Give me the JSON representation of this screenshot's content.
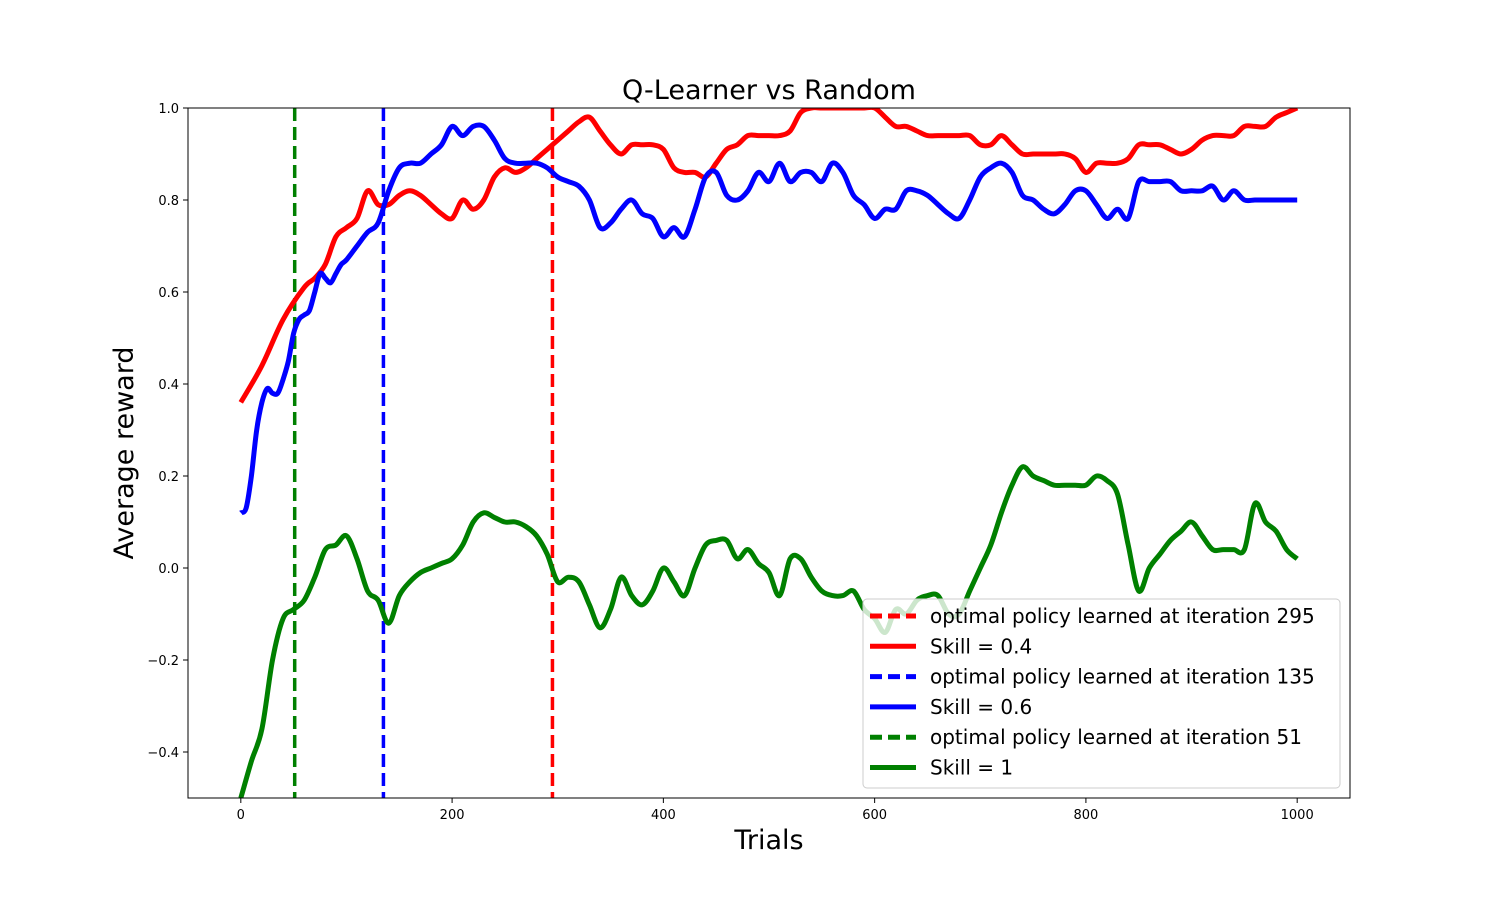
{
  "chart_data": {
    "type": "line",
    "title": "Q-Learner vs Random",
    "xlabel": "Trials",
    "ylabel": "Average reward",
    "xlim": [
      -50,
      1050
    ],
    "ylim": [
      -0.5,
      1.0
    ],
    "xticks": [
      0,
      200,
      400,
      600,
      800,
      1000
    ],
    "yticks": [
      -0.4,
      -0.2,
      0.0,
      0.2,
      0.4,
      0.6,
      0.8,
      1.0
    ],
    "ytick_labels": [
      "−0.4",
      "−0.2",
      "0.0",
      "0.2",
      "0.4",
      "0.6",
      "0.8",
      "1.0"
    ],
    "grid": false,
    "legend_position": "lower-right",
    "legend": [
      {
        "label": "optimal policy learned at iteration 295",
        "color": "#ff0000",
        "style": "dashed"
      },
      {
        "label": "Skill = 0.4",
        "color": "#ff0000",
        "style": "solid"
      },
      {
        "label": "optimal policy learned at iteration 135",
        "color": "#0000ff",
        "style": "dashed"
      },
      {
        "label": "Skill = 0.6",
        "color": "#0000ff",
        "style": "solid"
      },
      {
        "label": "optimal policy learned at iteration 51",
        "color": "#008000",
        "style": "dashed"
      },
      {
        "label": "Skill = 1",
        "color": "#008000",
        "style": "solid"
      }
    ],
    "vlines": [
      {
        "x": 295,
        "color": "#ff0000",
        "label": "optimal policy learned at iteration 295"
      },
      {
        "x": 135,
        "color": "#0000ff",
        "label": "optimal policy learned at iteration 135"
      },
      {
        "x": 51,
        "color": "#008000",
        "label": "optimal policy learned at iteration 51"
      }
    ],
    "series": [
      {
        "name": "Skill = 0.4",
        "color": "#ff0000",
        "x": [
          0,
          20,
          40,
          60,
          70,
          80,
          90,
          100,
          110,
          120,
          130,
          140,
          150,
          160,
          170,
          180,
          190,
          200,
          210,
          220,
          230,
          240,
          250,
          260,
          270,
          280,
          290,
          300,
          310,
          320,
          330,
          340,
          350,
          360,
          370,
          380,
          390,
          400,
          410,
          420,
          430,
          440,
          450,
          460,
          470,
          480,
          490,
          500,
          510,
          520,
          530,
          540,
          550,
          560,
          570,
          580,
          590,
          600,
          610,
          620,
          630,
          640,
          650,
          660,
          670,
          680,
          690,
          700,
          710,
          720,
          730,
          740,
          750,
          760,
          770,
          780,
          790,
          800,
          810,
          820,
          830,
          840,
          850,
          860,
          870,
          880,
          890,
          900,
          910,
          920,
          930,
          940,
          950,
          960,
          970,
          980,
          990,
          1000
        ],
        "y": [
          0.36,
          0.44,
          0.54,
          0.61,
          0.63,
          0.66,
          0.72,
          0.74,
          0.76,
          0.82,
          0.79,
          0.79,
          0.81,
          0.82,
          0.81,
          0.79,
          0.77,
          0.76,
          0.8,
          0.78,
          0.8,
          0.85,
          0.87,
          0.86,
          0.87,
          0.89,
          0.91,
          0.93,
          0.95,
          0.97,
          0.98,
          0.95,
          0.92,
          0.9,
          0.92,
          0.92,
          0.92,
          0.91,
          0.87,
          0.86,
          0.86,
          0.85,
          0.88,
          0.91,
          0.92,
          0.94,
          0.94,
          0.94,
          0.94,
          0.95,
          0.99,
          1.0,
          1.0,
          1.0,
          1.0,
          1.0,
          1.0,
          1.0,
          0.98,
          0.96,
          0.96,
          0.95,
          0.94,
          0.94,
          0.94,
          0.94,
          0.94,
          0.92,
          0.92,
          0.94,
          0.92,
          0.9,
          0.9,
          0.9,
          0.9,
          0.9,
          0.89,
          0.86,
          0.88,
          0.88,
          0.88,
          0.89,
          0.92,
          0.92,
          0.92,
          0.91,
          0.9,
          0.91,
          0.93,
          0.94,
          0.94,
          0.94,
          0.96,
          0.96,
          0.96,
          0.98,
          0.99,
          1.0
        ]
      },
      {
        "name": "Skill = 0.6",
        "color": "#0000ff",
        "x": [
          0,
          5,
          10,
          15,
          20,
          25,
          30,
          35,
          40,
          45,
          50,
          55,
          60,
          65,
          70,
          75,
          80,
          85,
          90,
          95,
          100,
          110,
          120,
          130,
          140,
          150,
          160,
          170,
          180,
          190,
          200,
          210,
          220,
          230,
          240,
          250,
          260,
          270,
          280,
          290,
          300,
          310,
          320,
          330,
          340,
          350,
          360,
          370,
          380,
          390,
          400,
          410,
          420,
          430,
          440,
          450,
          460,
          470,
          480,
          490,
          500,
          510,
          520,
          530,
          540,
          550,
          560,
          570,
          580,
          590,
          600,
          610,
          620,
          630,
          640,
          650,
          660,
          670,
          680,
          690,
          700,
          710,
          720,
          730,
          740,
          750,
          760,
          770,
          780,
          790,
          800,
          810,
          820,
          830,
          840,
          850,
          860,
          870,
          880,
          890,
          900,
          910,
          920,
          930,
          940,
          950,
          960,
          970,
          980,
          990,
          1000
        ],
        "y": [
          0.12,
          0.13,
          0.2,
          0.3,
          0.36,
          0.39,
          0.38,
          0.38,
          0.41,
          0.45,
          0.51,
          0.54,
          0.55,
          0.56,
          0.6,
          0.64,
          0.63,
          0.62,
          0.64,
          0.66,
          0.67,
          0.7,
          0.73,
          0.75,
          0.82,
          0.87,
          0.88,
          0.88,
          0.9,
          0.92,
          0.96,
          0.94,
          0.96,
          0.96,
          0.93,
          0.89,
          0.88,
          0.88,
          0.88,
          0.87,
          0.85,
          0.84,
          0.83,
          0.8,
          0.74,
          0.75,
          0.78,
          0.8,
          0.77,
          0.76,
          0.72,
          0.74,
          0.72,
          0.78,
          0.85,
          0.86,
          0.81,
          0.8,
          0.82,
          0.86,
          0.84,
          0.88,
          0.84,
          0.86,
          0.86,
          0.84,
          0.88,
          0.86,
          0.81,
          0.79,
          0.76,
          0.78,
          0.78,
          0.82,
          0.82,
          0.81,
          0.79,
          0.77,
          0.76,
          0.8,
          0.85,
          0.87,
          0.88,
          0.86,
          0.81,
          0.8,
          0.78,
          0.77,
          0.79,
          0.82,
          0.82,
          0.79,
          0.76,
          0.78,
          0.76,
          0.84,
          0.84,
          0.84,
          0.84,
          0.82,
          0.82,
          0.82,
          0.83,
          0.8,
          0.82,
          0.8,
          0.8,
          0.8,
          0.8,
          0.8,
          0.8
        ]
      },
      {
        "name": "Skill = 1",
        "color": "#008000",
        "x": [
          0,
          10,
          20,
          30,
          40,
          50,
          60,
          70,
          80,
          90,
          100,
          110,
          120,
          130,
          140,
          150,
          160,
          170,
          180,
          190,
          200,
          210,
          220,
          230,
          240,
          250,
          260,
          270,
          280,
          290,
          300,
          310,
          320,
          330,
          340,
          350,
          360,
          370,
          380,
          390,
          400,
          410,
          420,
          430,
          440,
          450,
          460,
          470,
          480,
          490,
          500,
          510,
          520,
          530,
          540,
          550,
          560,
          570,
          580,
          590,
          600,
          610,
          620,
          630,
          640,
          650,
          660,
          670,
          680,
          690,
          700,
          710,
          720,
          730,
          740,
          750,
          760,
          770,
          780,
          790,
          800,
          810,
          820,
          830,
          840,
          850,
          860,
          870,
          880,
          890,
          900,
          910,
          920,
          930,
          940,
          950,
          960,
          970,
          980,
          990,
          1000
        ],
        "y": [
          -0.5,
          -0.42,
          -0.35,
          -0.2,
          -0.11,
          -0.09,
          -0.07,
          -0.02,
          0.04,
          0.05,
          0.07,
          0.02,
          -0.05,
          -0.07,
          -0.12,
          -0.06,
          -0.03,
          -0.01,
          0.0,
          0.01,
          0.02,
          0.05,
          0.1,
          0.12,
          0.11,
          0.1,
          0.1,
          0.09,
          0.07,
          0.03,
          -0.03,
          -0.02,
          -0.03,
          -0.08,
          -0.13,
          -0.09,
          -0.02,
          -0.06,
          -0.08,
          -0.05,
          0.0,
          -0.03,
          -0.06,
          0.0,
          0.05,
          0.06,
          0.06,
          0.02,
          0.04,
          0.01,
          -0.01,
          -0.06,
          0.02,
          0.02,
          -0.02,
          -0.05,
          -0.06,
          -0.06,
          -0.05,
          -0.09,
          -0.11,
          -0.14,
          -0.09,
          -0.1,
          -0.07,
          -0.06,
          -0.06,
          -0.1,
          -0.1,
          -0.05,
          0.0,
          0.05,
          0.12,
          0.18,
          0.22,
          0.2,
          0.19,
          0.18,
          0.18,
          0.18,
          0.18,
          0.2,
          0.19,
          0.16,
          0.05,
          -0.05,
          0.0,
          0.03,
          0.06,
          0.08,
          0.1,
          0.07,
          0.04,
          0.04,
          0.04,
          0.04,
          0.14,
          0.1,
          0.08,
          0.04,
          0.02
        ]
      }
    ]
  }
}
